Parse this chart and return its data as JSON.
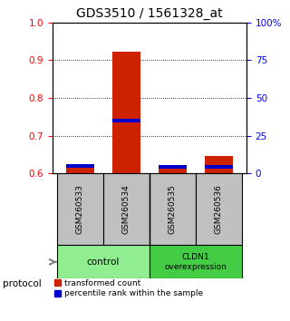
{
  "title": "GDS3510 / 1561328_at",
  "samples": [
    "GSM260533",
    "GSM260534",
    "GSM260535",
    "GSM260536"
  ],
  "red_values": [
    0.625,
    0.923,
    0.622,
    0.647
  ],
  "blue_values": [
    0.614,
    0.735,
    0.612,
    0.612
  ],
  "ylim": [
    0.6,
    1.0
  ],
  "yticks_left": [
    0.6,
    0.7,
    0.8,
    0.9,
    1.0
  ],
  "right_labels": [
    "0",
    "25",
    "50",
    "75",
    "100%"
  ],
  "bar_color": "#CC2200",
  "blue_color": "#0000CC",
  "bar_width": 0.6,
  "sample_box_color": "#C0C0C0",
  "legend_red_label": "transformed count",
  "legend_blue_label": "percentile rank within the sample",
  "protocol_label": "protocol",
  "title_fontsize": 10,
  "tick_fontsize": 7.5
}
